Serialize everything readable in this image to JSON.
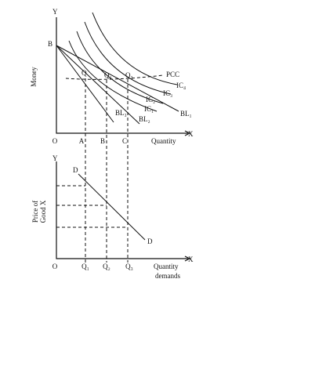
{
  "top": {
    "y_axis": "Y",
    "x_axis": "X",
    "origin": "O",
    "point_b": "B",
    "y_label": "Money",
    "x_label": "Quantity",
    "x_points": [
      "A",
      "B",
      "C"
    ],
    "equilibria": [
      "Q",
      "Q₂",
      "Q₃"
    ],
    "pcc": "PCC",
    "curves": [
      "IC₄",
      "IC₃",
      "IC₂",
      "IC₁"
    ],
    "budget_lines": [
      "BL₁",
      "BL₂",
      "BL₃"
    ]
  },
  "bottom": {
    "y_axis": "Y",
    "x_axis": "X",
    "origin": "O",
    "y_label_1": "Price of",
    "y_label_2": "Good X",
    "demand_top": "D",
    "demand_bottom": "D",
    "x_points": [
      "Q₁",
      "Q₂",
      "Q₃"
    ],
    "x_label_1": "Quantity",
    "x_label_2": "demands"
  }
}
